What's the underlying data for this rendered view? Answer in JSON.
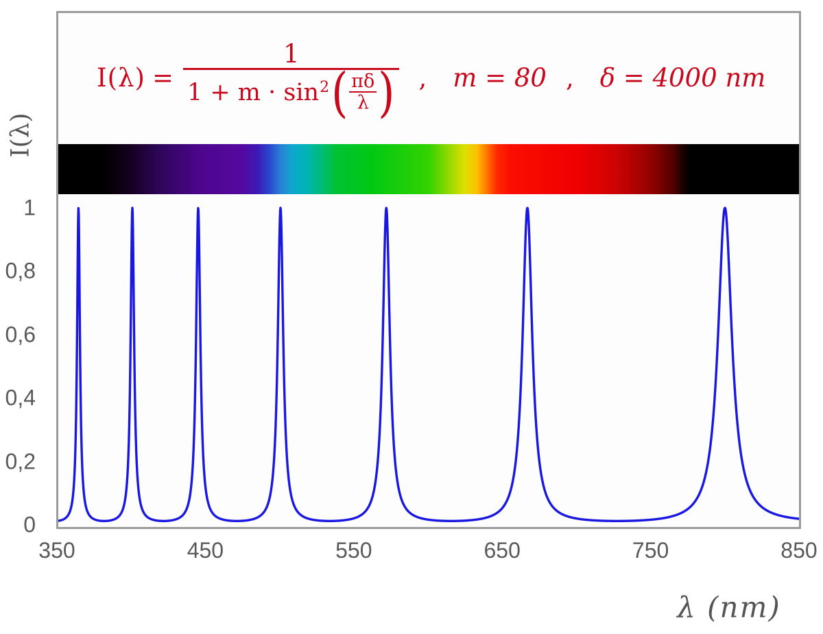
{
  "formula": {
    "color": "#c8081d",
    "lhs": "I(λ)",
    "equals": "=",
    "numerator": "1",
    "den_prefix": "1 + m · sin",
    "den_sup": "2",
    "lparen": "(",
    "rparen": ")",
    "inner_num": "πδ",
    "inner_den": "λ",
    "comma1": ",",
    "m_eq": "m = 80",
    "comma2": ",",
    "delta_eq": "δ = 4000 nm"
  },
  "axes": {
    "x_label": "λ  (nm)",
    "y_label": "I(λ)",
    "x_tick_labels": [
      "350",
      "450",
      "550",
      "650",
      "750",
      "850"
    ],
    "y_tick_labels": [
      "0",
      "0,2",
      "0,4",
      "0,6",
      "0,8",
      "1"
    ],
    "y_tick_values": [
      0,
      0.2,
      0.4,
      0.6,
      0.8,
      1
    ],
    "tick_color": "#595959"
  },
  "chart_data": {
    "type": "line",
    "title": "Fabry–Perot / Airy transmission function",
    "formula_text": "I(λ) = 1 / (1 + m·sin²(πδ/λ)) ,  m = 80 ,  δ = 4000 nm",
    "params": {
      "m": 80,
      "delta_nm": 4000
    },
    "x_range_nm": [
      350,
      850
    ],
    "sample_step_nm": 0.2,
    "ylim": [
      0,
      1
    ],
    "x_ticks_nm": [
      350,
      450,
      550,
      650,
      750,
      850
    ],
    "y_ticks": [
      0,
      0.2,
      0.4,
      0.6,
      0.8,
      1
    ],
    "peak_wavelengths_nm": [
      363.6,
      400,
      444.4,
      500,
      571.4,
      666.7,
      800
    ],
    "peak_orders_k": [
      11,
      10,
      9,
      8,
      7,
      6,
      5
    ],
    "peak_value": 1,
    "baseline_value": 0.0123,
    "grid": false,
    "legend": "none",
    "curve_color": "#1a17e0",
    "curve_width": 3.4,
    "frame_color": "#9b9b9b",
    "spectrum_bar": {
      "description": "visible-spectrum strip, black outside ~380-780 nm",
      "stops": [
        {
          "pos": 0.0,
          "color": "#000000"
        },
        {
          "pos": 0.06,
          "color": "#000000"
        },
        {
          "pos": 0.095,
          "color": "#14001e"
        },
        {
          "pos": 0.14,
          "color": "#30065e"
        },
        {
          "pos": 0.19,
          "color": "#4c058b"
        },
        {
          "pos": 0.245,
          "color": "#56089e"
        },
        {
          "pos": 0.268,
          "color": "#3f17b5"
        },
        {
          "pos": 0.285,
          "color": "#2948cf"
        },
        {
          "pos": 0.3,
          "color": "#2b7fd4"
        },
        {
          "pos": 0.315,
          "color": "#0fa6cf"
        },
        {
          "pos": 0.335,
          "color": "#00b4b4"
        },
        {
          "pos": 0.355,
          "color": "#00bb78"
        },
        {
          "pos": 0.375,
          "color": "#00c233"
        },
        {
          "pos": 0.42,
          "color": "#00c814"
        },
        {
          "pos": 0.5,
          "color": "#32d200"
        },
        {
          "pos": 0.525,
          "color": "#8cd800"
        },
        {
          "pos": 0.548,
          "color": "#dce000"
        },
        {
          "pos": 0.565,
          "color": "#ffc000"
        },
        {
          "pos": 0.578,
          "color": "#ff7800"
        },
        {
          "pos": 0.592,
          "color": "#ff2a00"
        },
        {
          "pos": 0.61,
          "color": "#fc0d00"
        },
        {
          "pos": 0.7,
          "color": "#ef0000"
        },
        {
          "pos": 0.755,
          "color": "#cb0303"
        },
        {
          "pos": 0.8,
          "color": "#930101"
        },
        {
          "pos": 0.83,
          "color": "#520000"
        },
        {
          "pos": 0.843,
          "color": "#1c0000"
        },
        {
          "pos": 0.853,
          "color": "#000000"
        },
        {
          "pos": 1.0,
          "color": "#000000"
        }
      ]
    }
  }
}
